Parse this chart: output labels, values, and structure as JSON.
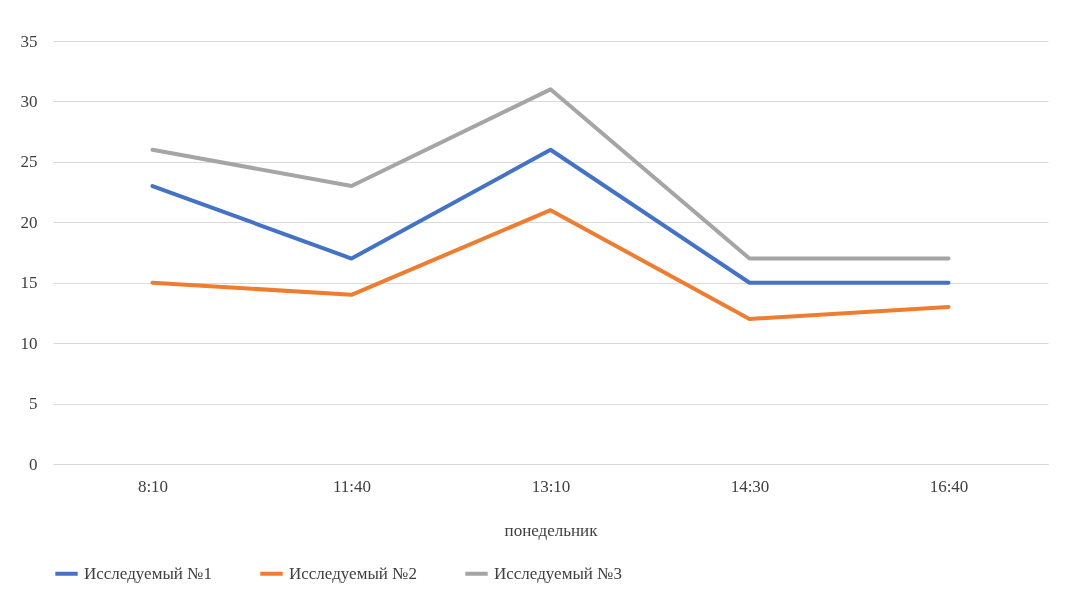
{
  "chart_data": {
    "type": "line",
    "xlabel": "понедельник",
    "categories": [
      "8:10",
      "11:40",
      "13:10",
      "14:30",
      "16:40"
    ],
    "series": [
      {
        "name": "Исследуемый №1",
        "color": "#4472c4",
        "values": [
          23,
          17,
          26,
          15,
          15
        ]
      },
      {
        "name": "Исследуемый №2",
        "color": "#ed7d31",
        "values": [
          15,
          14,
          21,
          12,
          13
        ]
      },
      {
        "name": "Исследуемый №3",
        "color": "#a5a5a5",
        "values": [
          26,
          23,
          31,
          17,
          17
        ]
      }
    ],
    "ylim": [
      0,
      35
    ],
    "yticks": [
      0,
      5,
      10,
      15,
      20,
      25,
      30,
      35
    ],
    "grid": "y",
    "legend": "bottom"
  }
}
